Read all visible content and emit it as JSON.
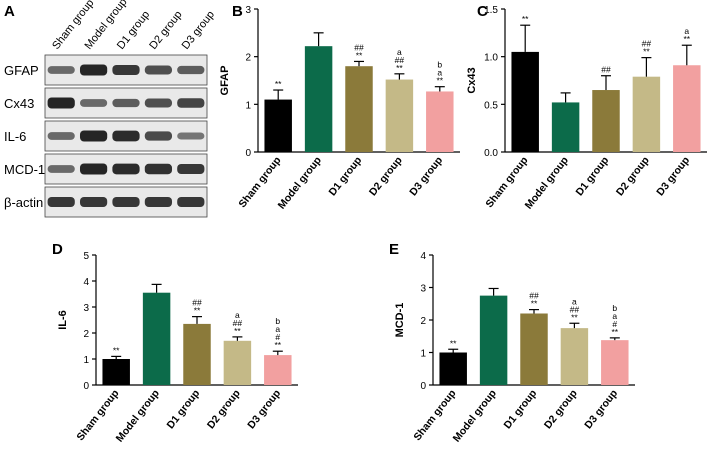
{
  "panel_letters": [
    "A",
    "B",
    "C",
    "D",
    "E"
  ],
  "blot": {
    "group_labels": [
      "Sham group",
      "Model group",
      "D1 group",
      "D2 group",
      "D3 group"
    ],
    "rows": [
      {
        "name": "GFAP",
        "intensities": [
          0.45,
          1.0,
          0.85,
          0.65,
          0.55
        ]
      },
      {
        "name": "Cx43",
        "intensities": [
          1.0,
          0.45,
          0.55,
          0.65,
          0.75
        ]
      },
      {
        "name": "IL-6",
        "intensities": [
          0.45,
          1.0,
          0.95,
          0.7,
          0.35
        ]
      },
      {
        "name": "MCD-1",
        "intensities": [
          0.45,
          1.0,
          0.95,
          0.9,
          0.85
        ]
      },
      {
        "name": "β-actin",
        "intensities": [
          0.85,
          0.85,
          0.85,
          0.85,
          0.85
        ]
      }
    ]
  },
  "colors": {
    "Sham group": "#000000",
    "Model group": "#0c6b4a",
    "D1 group": "#8b7a3a",
    "D2 group": "#c4b987",
    "D3 group": "#f2a0a0"
  },
  "chart_data": [
    {
      "panel": "B",
      "type": "bar",
      "title": "",
      "xlabel": "",
      "ylabel": "GFAP",
      "categories": [
        "Sham group",
        "Model group",
        "D1 group",
        "D2 group",
        "D3 group"
      ],
      "values": [
        1.1,
        2.22,
        1.8,
        1.52,
        1.27
      ],
      "errors": [
        0.2,
        0.28,
        0.1,
        0.12,
        0.1
      ],
      "annotations": [
        [
          "**"
        ],
        [],
        [
          "##",
          "**"
        ],
        [
          "a",
          "##",
          "**"
        ],
        [
          "b",
          "a",
          "**"
        ]
      ],
      "ylim": [
        0,
        3
      ],
      "yticks": [
        0,
        1,
        2,
        3
      ]
    },
    {
      "panel": "C",
      "type": "bar",
      "title": "",
      "xlabel": "",
      "ylabel": "Cx43",
      "categories": [
        "Sham group",
        "Model group",
        "D1 group",
        "D2 group",
        "D3 group"
      ],
      "values": [
        1.05,
        0.52,
        0.65,
        0.79,
        0.91
      ],
      "errors": [
        0.28,
        0.1,
        0.15,
        0.2,
        0.21
      ],
      "annotations": [
        [
          "**"
        ],
        [],
        [
          "##"
        ],
        [
          "##",
          "**"
        ],
        [
          "a",
          "**"
        ]
      ],
      "ylim": [
        0,
        1.5
      ],
      "yticks": [
        0,
        0.5,
        1.0,
        1.5
      ]
    },
    {
      "panel": "D",
      "type": "bar",
      "title": "",
      "xlabel": "",
      "ylabel": "IL-6",
      "categories": [
        "Sham group",
        "Model group",
        "D1 group",
        "D2 group",
        "D3 group"
      ],
      "values": [
        1.0,
        3.55,
        2.35,
        1.7,
        1.15
      ],
      "errors": [
        0.1,
        0.32,
        0.28,
        0.15,
        0.15
      ],
      "annotations": [
        [
          "**"
        ],
        [],
        [
          "##",
          "**"
        ],
        [
          "a",
          "##",
          "**"
        ],
        [
          "b",
          "a",
          "#",
          "**"
        ]
      ],
      "ylim": [
        0,
        5
      ],
      "yticks": [
        0,
        1,
        2,
        3,
        4,
        5
      ]
    },
    {
      "panel": "E",
      "type": "bar",
      "title": "",
      "xlabel": "",
      "ylabel": "MCD-1",
      "categories": [
        "Sham group",
        "Model group",
        "D1 group",
        "D2 group",
        "D3 group"
      ],
      "values": [
        1.0,
        2.75,
        2.2,
        1.75,
        1.38
      ],
      "errors": [
        0.1,
        0.22,
        0.12,
        0.15,
        0.07
      ],
      "annotations": [
        [
          "**"
        ],
        [],
        [
          "##",
          "**"
        ],
        [
          "a",
          "##",
          "**"
        ],
        [
          "b",
          "a",
          "#",
          "**"
        ]
      ],
      "ylim": [
        0,
        4
      ],
      "yticks": [
        0,
        1,
        2,
        3,
        4
      ]
    }
  ]
}
